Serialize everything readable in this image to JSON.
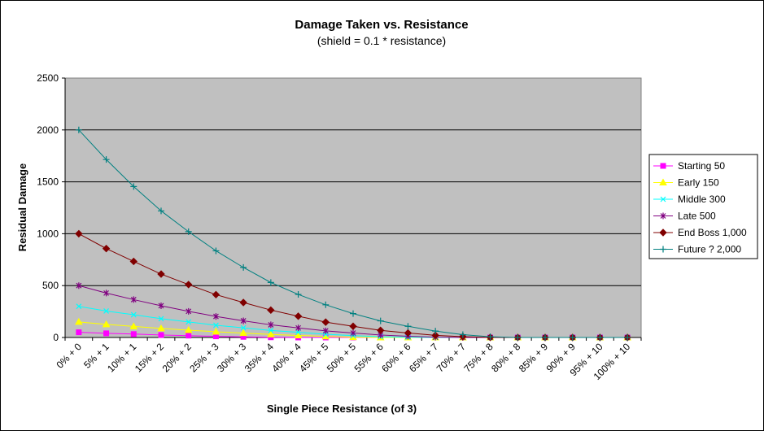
{
  "chart_data": {
    "type": "line",
    "title": "Damage Taken vs. Resistance",
    "subtitle": "(shield = 0.1 * resistance)",
    "xlabel": "Single Piece Resistance (of 3)",
    "ylabel": "Residual Damage",
    "ylim": [
      0,
      2500
    ],
    "y_ticks": [
      "0",
      "500",
      "1000",
      "1500",
      "2000",
      "2500"
    ],
    "grid": true,
    "legend_position": "right",
    "plot_background": "#c0c0c0",
    "categories": [
      "0% + 0",
      "5% + 1",
      "10% + 1",
      "15% + 2",
      "20% + 2",
      "25% + 3",
      "30% + 3",
      "35% + 4",
      "40% + 4",
      "45% + 5",
      "50% + 5",
      "55% + 6",
      "60% + 6",
      "65% + 7",
      "70% + 7",
      "75% + 8",
      "80% + 8",
      "85% + 9",
      "90% + 9",
      "95% + 10",
      "100% + 10"
    ],
    "series": [
      {
        "name": "Starting 50",
        "color": "#ff00ff",
        "marker": "square",
        "values": [
          50,
          40,
          33,
          24,
          18,
          11,
          6,
          2,
          0,
          0,
          0,
          0,
          0,
          0,
          0,
          0,
          0,
          0,
          0,
          0,
          0
        ]
      },
      {
        "name": "Early 150",
        "color": "#ffff00",
        "marker": "triangle",
        "values": [
          150,
          126,
          107,
          87,
          71,
          55,
          42,
          29,
          20,
          10,
          3,
          0,
          0,
          0,
          0,
          0,
          0,
          0,
          0,
          0,
          0
        ]
      },
      {
        "name": "Middle 300",
        "color": "#00ffff",
        "marker": "x",
        "values": [
          300,
          255,
          219,
          181,
          150,
          118,
          93,
          68,
          50,
          31,
          18,
          7,
          2,
          0,
          0,
          0,
          0,
          0,
          0,
          0,
          0
        ]
      },
      {
        "name": "Late 500",
        "color": "#800080",
        "marker": "star",
        "values": [
          500,
          428,
          365,
          306,
          252,
          203,
          161,
          122,
          92,
          64,
          43,
          24,
          12,
          3,
          0,
          0,
          0,
          0,
          0,
          0,
          0
        ]
      },
      {
        "name": "End Boss 1,000",
        "color": "#800000",
        "marker": "diamond",
        "values": [
          1000,
          857,
          733,
          611,
          510,
          413,
          337,
          264,
          205,
          148,
          108,
          69,
          43,
          21,
          8,
          1,
          0,
          0,
          0,
          0,
          0
        ]
      },
      {
        "name": "Future ? 2,000",
        "color": "#008080",
        "marker": "plus",
        "values": [
          2000,
          1715,
          1455,
          1220,
          1020,
          835,
          675,
          530,
          415,
          315,
          230,
          160,
          108,
          62,
          27,
          7,
          0,
          0,
          0,
          0,
          0
        ]
      }
    ]
  }
}
